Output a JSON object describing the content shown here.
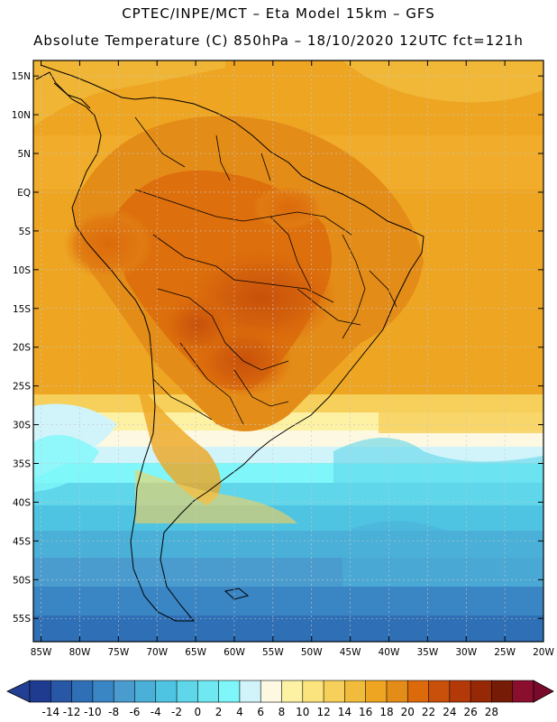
{
  "header": {
    "line1": "CPTEC/INPE/MCT –  Eta Model 15km – GFS",
    "line2": "Absolute Temperature (C) 850hPa – 18/10/2020 12UTC fct=121h"
  },
  "map": {
    "lat_labels": [
      "15N",
      "10N",
      "5N",
      "EQ",
      "5S",
      "10S",
      "15S",
      "20S",
      "25S",
      "30S",
      "35S",
      "40S",
      "45S",
      "50S",
      "55S"
    ],
    "lon_labels": [
      "85W",
      "80W",
      "75W",
      "70W",
      "65W",
      "60W",
      "55W",
      "50W",
      "45W",
      "40W",
      "35W",
      "30W",
      "25W",
      "20W"
    ],
    "lat_values": [
      15,
      10,
      5,
      0,
      -5,
      -10,
      -15,
      -20,
      -25,
      -30,
      -35,
      -40,
      -45,
      -50,
      -55
    ],
    "lon_values": [
      -85,
      -80,
      -75,
      -70,
      -65,
      -60,
      -55,
      -50,
      -45,
      -40,
      -35,
      -30,
      -25,
      -20
    ],
    "extent": {
      "lon_min": -86,
      "lon_max": -20,
      "lat_min": -58,
      "lat_max": 17
    }
  },
  "colorbar": {
    "labels": [
      "-14",
      "-12",
      "-10",
      "-8",
      "-6",
      "-4",
      "-2",
      "0",
      "2",
      "4",
      "6",
      "8",
      "10",
      "12",
      "14",
      "16",
      "18",
      "20",
      "22",
      "24",
      "26",
      "28"
    ],
    "colors": [
      "#1f3b8f",
      "#2757a5",
      "#2f6fb6",
      "#3a85c4",
      "#4a9ccf",
      "#4bb0d8",
      "#4fc4e2",
      "#5fd6ea",
      "#6fe8f1",
      "#7ff7fa",
      "#d0f4fa",
      "#fdf8e2",
      "#fdf1a4",
      "#fbe47e",
      "#f6d05a",
      "#f1bc3c",
      "#eea522",
      "#e48c18",
      "#dc6a0a",
      "#c8500a",
      "#b33a08",
      "#962806",
      "#761c06",
      "#8a0f2e"
    ],
    "under_color": "#233f95",
    "over_color": "#7a0a2c"
  }
}
